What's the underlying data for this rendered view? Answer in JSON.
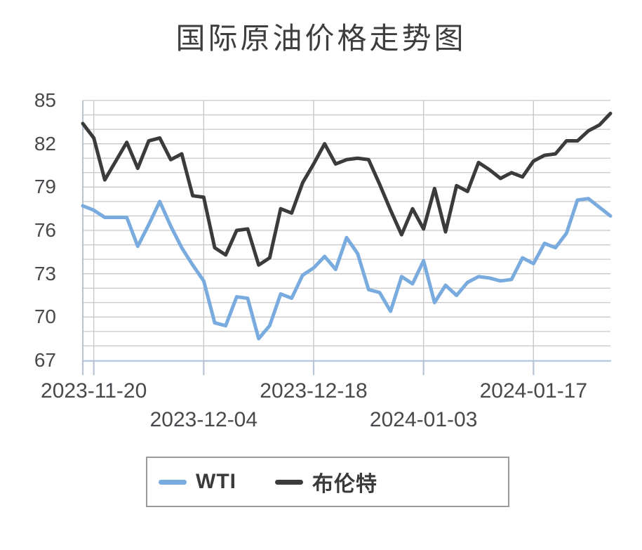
{
  "chart_data": {
    "type": "line",
    "title": "国际原油价格走势图",
    "x": [
      "2023-11-17",
      "2023-11-20",
      "2023-11-21",
      "2023-11-22",
      "2023-11-23",
      "2023-11-24",
      "2023-11-27",
      "2023-11-28",
      "2023-11-29",
      "2023-11-30",
      "2023-12-01",
      "2023-12-04",
      "2023-12-05",
      "2023-12-06",
      "2023-12-07",
      "2023-12-08",
      "2023-12-11",
      "2023-12-12",
      "2023-12-13",
      "2023-12-14",
      "2023-12-15",
      "2023-12-18",
      "2023-12-19",
      "2023-12-20",
      "2023-12-21",
      "2023-12-22",
      "2023-12-26",
      "2023-12-27",
      "2023-12-28",
      "2023-12-29",
      "2024-01-02",
      "2024-01-03",
      "2024-01-04",
      "2024-01-05",
      "2024-01-08",
      "2024-01-09",
      "2024-01-10",
      "2024-01-11",
      "2024-01-12",
      "2024-01-15",
      "2024-01-16",
      "2024-01-17",
      "2024-01-18",
      "2024-01-19",
      "2024-01-22",
      "2024-01-23",
      "2024-01-24",
      "2024-01-25",
      "2024-01-26"
    ],
    "series": [
      {
        "name": "WTI",
        "color": "#79ABDF",
        "values": [
          77.7,
          77.4,
          76.9,
          76.9,
          76.9,
          74.9,
          76.4,
          78.0,
          76.3,
          74.8,
          73.6,
          72.5,
          69.6,
          69.4,
          71.4,
          71.3,
          68.5,
          69.4,
          71.6,
          71.3,
          72.9,
          73.4,
          74.2,
          73.3,
          75.5,
          74.4,
          71.9,
          71.7,
          70.4,
          72.8,
          72.3,
          73.9,
          71.0,
          72.2,
          71.5,
          72.4,
          72.8,
          72.7,
          72.5,
          72.6,
          74.1,
          73.7,
          75.1,
          74.8,
          75.8,
          78.1,
          78.2,
          77.6,
          77.0
        ]
      },
      {
        "name": "布伦特",
        "color": "#3b3b3b",
        "values": [
          83.4,
          82.4,
          79.5,
          80.8,
          82.1,
          80.3,
          82.2,
          82.4,
          80.9,
          81.3,
          78.4,
          78.3,
          74.8,
          74.3,
          76.0,
          76.1,
          73.6,
          74.1,
          77.5,
          77.2,
          79.3,
          80.6,
          82.0,
          80.6,
          80.9,
          81.0,
          80.9,
          79.2,
          77.4,
          75.7,
          77.5,
          76.1,
          78.9,
          75.9,
          79.1,
          78.7,
          80.7,
          80.2,
          79.6,
          80.0,
          79.7,
          80.8,
          81.2,
          81.3,
          82.2,
          82.2,
          82.9,
          83.3,
          84.1
        ]
      }
    ],
    "ylim": [
      67,
      85
    ],
    "y_ticks": [
      85,
      82,
      79,
      76,
      73,
      70,
      67
    ],
    "x_tick_labels": [
      "2023-11-20",
      "2023-12-04",
      "2023-12-18",
      "2024-01-03",
      "2024-01-17"
    ],
    "x_tick_indices": [
      1,
      11,
      21,
      31,
      41
    ],
    "grid": true,
    "legend_position": "bottom",
    "xlabel": "",
    "ylabel": ""
  },
  "colors": {
    "grid": "#c8c8c8",
    "axis": "#b7c4d6",
    "x_axis_line": "#b5c9e2",
    "label_text": "#47494d",
    "title_text": "#3e3e3e"
  },
  "legend": {
    "items": [
      {
        "label": "WTI",
        "color": "#79ABDF"
      },
      {
        "label": "布伦特",
        "color": "#3b3b3b"
      }
    ]
  }
}
